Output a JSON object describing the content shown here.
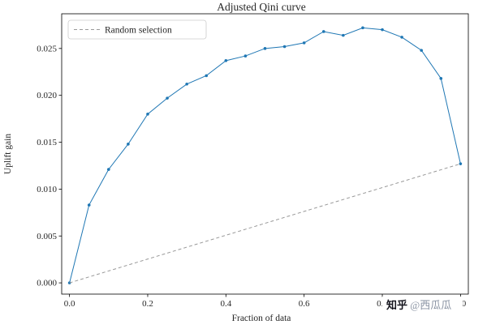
{
  "chart_data": {
    "type": "line",
    "title": "Adjusted Qini curve",
    "xlabel": "Fraction of data",
    "ylabel": "Uplift gain",
    "xlim": [
      -0.02,
      1.02
    ],
    "ylim": [
      -0.0012,
      0.0287
    ],
    "grid": false,
    "xticks": {
      "values": [
        0.0,
        0.2,
        0.4,
        0.6,
        0.8,
        1.0
      ],
      "labels": [
        "0.0",
        "0.2",
        "0.4",
        "0.6",
        "0.8",
        "1.0"
      ]
    },
    "yticks": {
      "values": [
        0.0,
        0.005,
        0.01,
        0.015,
        0.02,
        0.025
      ],
      "labels": [
        "0.000",
        "0.005",
        "0.010",
        "0.015",
        "0.020",
        "0.025"
      ]
    },
    "legend": {
      "position": "upper left",
      "entries": [
        "Random selection"
      ]
    },
    "series": [
      {
        "name": "Adjusted Qini",
        "style": "line-markers",
        "color": "#1f77b4",
        "x": [
          0.0,
          0.05,
          0.1,
          0.15,
          0.2,
          0.25,
          0.3,
          0.35,
          0.4,
          0.45,
          0.5,
          0.55,
          0.6,
          0.65,
          0.7,
          0.75,
          0.8,
          0.85,
          0.9,
          0.95,
          1.0
        ],
        "y": [
          0.0,
          0.0083,
          0.0121,
          0.0148,
          0.018,
          0.0197,
          0.0212,
          0.0221,
          0.0237,
          0.0242,
          0.025,
          0.0252,
          0.0256,
          0.0268,
          0.0264,
          0.0272,
          0.027,
          0.0262,
          0.0248,
          0.0218,
          0.0127
        ],
        "markers": true
      },
      {
        "name": "Random selection",
        "style": "dashed-line",
        "color": "#999999",
        "x": [
          0.0,
          1.0
        ],
        "y": [
          0.0,
          0.0127
        ],
        "markers": false
      }
    ]
  },
  "watermark": {
    "brand": "知乎",
    "handle": " @西瓜瓜"
  }
}
